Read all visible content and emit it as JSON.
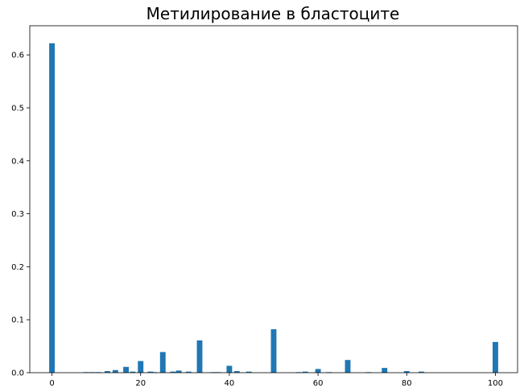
{
  "chart_data": {
    "type": "bar",
    "title": "Метилирование в бластоците",
    "xlabel": "",
    "ylabel": "",
    "xlim": [
      -5,
      105
    ],
    "ylim": [
      0,
      0.655
    ],
    "xticks": [
      0,
      20,
      40,
      60,
      80,
      100
    ],
    "yticks": [
      0.0,
      0.1,
      0.2,
      0.3,
      0.4,
      0.5,
      0.6
    ],
    "grid": false,
    "bar_color": "#1f77b4",
    "bar_width": 1.25,
    "series": [
      {
        "x": [
          0,
          7.7,
          9.1,
          10.5,
          12.5,
          14.3,
          16.7,
          18.2,
          20,
          22.2,
          23.1,
          25,
          27.3,
          28.6,
          30.8,
          33.3,
          36.4,
          37.5,
          40,
          41.7,
          44.4,
          50,
          55.6,
          57.1,
          60,
          62.5,
          66.7,
          71.4,
          75,
          80,
          83.3,
          100
        ],
        "values": [
          0.622,
          0.001,
          0.001,
          0.001,
          0.003,
          0.005,
          0.011,
          0.002,
          0.022,
          0.002,
          0.001,
          0.039,
          0.002,
          0.004,
          0.002,
          0.061,
          0.001,
          0.001,
          0.013,
          0.003,
          0.002,
          0.082,
          0.001,
          0.002,
          0.007,
          0.001,
          0.024,
          0.001,
          0.009,
          0.003,
          0.002,
          0.058
        ]
      }
    ]
  }
}
